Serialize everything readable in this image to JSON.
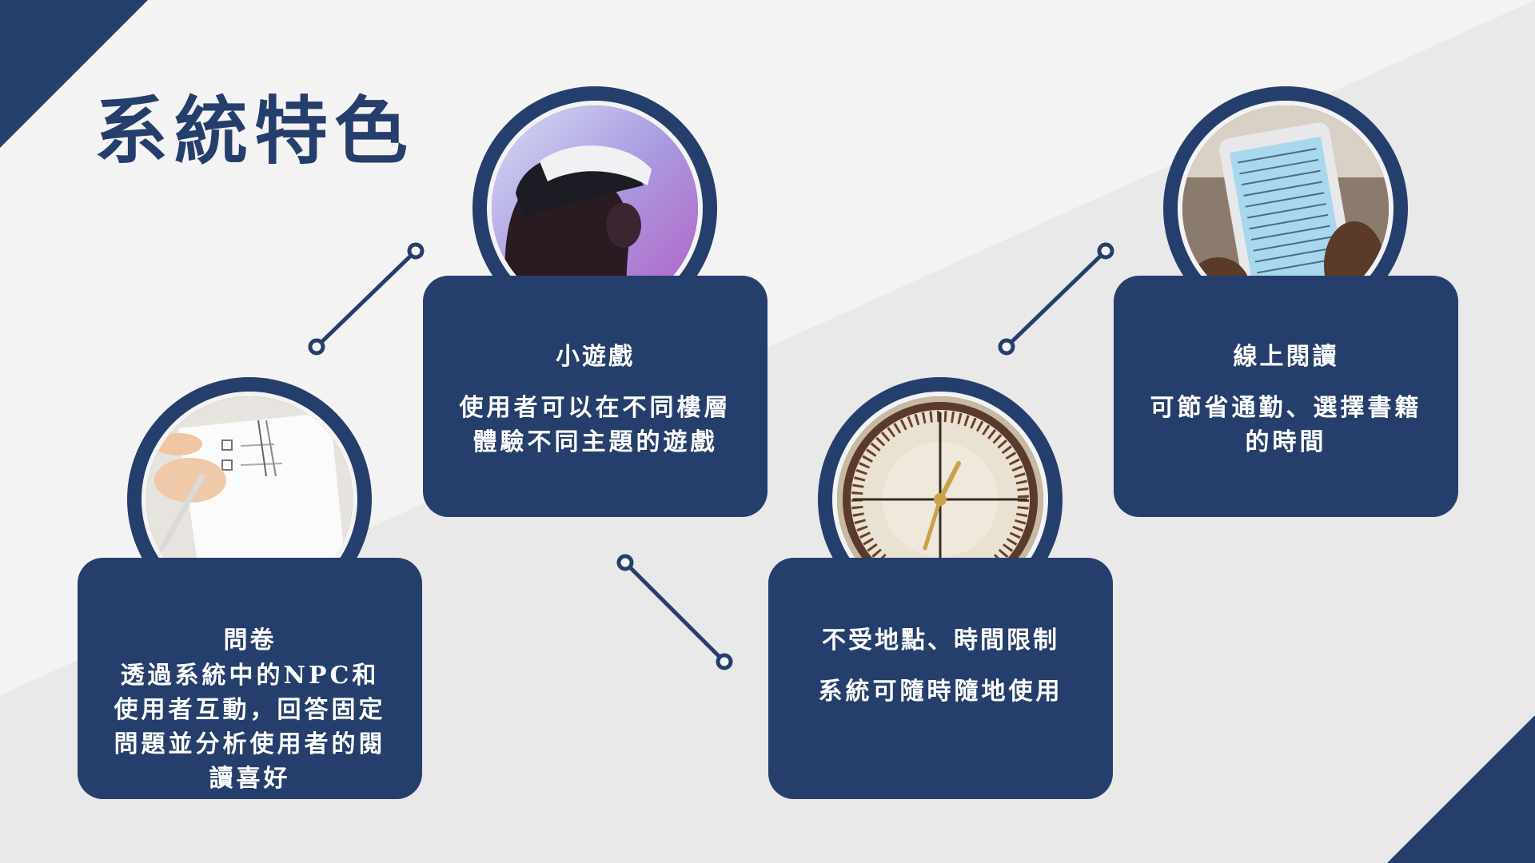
{
  "slide": {
    "title": "系統特色"
  },
  "colors": {
    "navy": "#263e6b",
    "background": "#f3f3f4",
    "band": "#e9e9ea",
    "text_on_card": "#ffffff"
  },
  "features": [
    {
      "heading": "問卷",
      "description": "透過系統中的NPC和使用者互動，回答固定問題並分析使用者的閱讀喜好",
      "image": "questionnaire-photo"
    },
    {
      "heading": "小遊戲",
      "description": "使用者可以在不同樓層體驗不同主題的遊戲",
      "image": "vr-headset-photo"
    },
    {
      "heading": "不受地點、時間限制",
      "description": "系統可隨時隨地使用",
      "image": "clock-photo"
    },
    {
      "heading": "線上閱讀",
      "description": "可節省通勤、選擇書籍的時間",
      "image": "tablet-reading-photo"
    }
  ]
}
